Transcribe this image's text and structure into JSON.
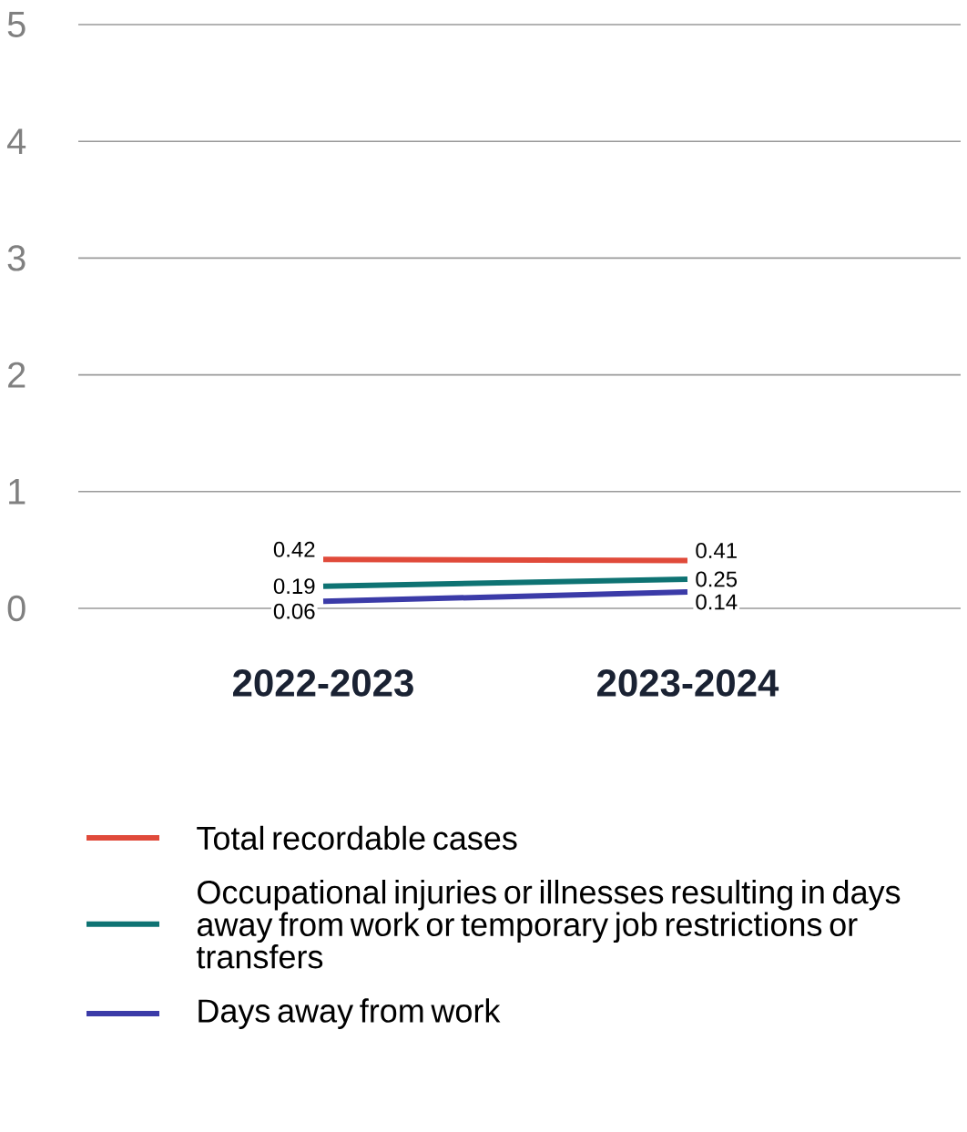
{
  "chart_data": {
    "type": "line",
    "categories": [
      "2022-2023",
      "2023-2024"
    ],
    "series": [
      {
        "name": "Total recordable cases",
        "color": "#e04a3a",
        "values": [
          0.42,
          0.41
        ]
      },
      {
        "name": "Occupational injuries or illnesses resulting in days away from work or temporary job restrictions or transfers",
        "color": "#0e7373",
        "values": [
          0.19,
          0.25
        ]
      },
      {
        "name": "Days away from work",
        "color": "#3b3ba8",
        "values": [
          0.06,
          0.14
        ]
      }
    ],
    "ylim": [
      0,
      5
    ],
    "yticks": [
      0,
      1,
      2,
      3,
      4,
      5
    ],
    "grid": "y",
    "legend": "bottom",
    "data_labels": true
  }
}
